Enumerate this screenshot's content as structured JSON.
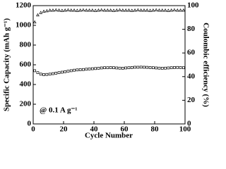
{
  "chart_data": {
    "type": "scatter",
    "x_label": "Cycle Number",
    "y_label": "Specific Capacity (mAh g⁻¹)",
    "y2_label": "Coulombic efficiency (%)",
    "annotation": "@ 0.1 A g⁻¹",
    "xlim": [
      0,
      100
    ],
    "xticks": [
      0,
      20,
      40,
      60,
      80,
      100
    ],
    "ylim": [
      0,
      1200
    ],
    "yticks": [
      0,
      200,
      400,
      600,
      800,
      1000,
      1200
    ],
    "y2lim": [
      0,
      100
    ],
    "y2ticks": [
      0,
      20,
      40,
      60,
      80,
      100
    ],
    "x": [
      1,
      3,
      5,
      7,
      9,
      11,
      13,
      15,
      17,
      19,
      21,
      23,
      25,
      27,
      29,
      31,
      33,
      35,
      37,
      39,
      41,
      43,
      45,
      47,
      49,
      51,
      53,
      55,
      57,
      59,
      61,
      63,
      65,
      67,
      69,
      71,
      73,
      75,
      77,
      79,
      81,
      83,
      85,
      87,
      89,
      91,
      93,
      95,
      97,
      99
    ],
    "series": [
      {
        "name": "Specific Capacity",
        "color": "#000000",
        "marker": "square",
        "values": [
          540,
          520,
          505,
          500,
          502,
          505,
          510,
          515,
          520,
          525,
          530,
          535,
          540,
          545,
          548,
          550,
          552,
          555,
          558,
          560,
          562,
          565,
          568,
          570,
          570,
          572,
          570,
          568,
          566,
          565,
          568,
          570,
          572,
          575,
          575,
          576,
          575,
          574,
          572,
          570,
          568,
          566,
          565,
          566,
          568,
          570,
          572,
          573,
          572,
          570
        ]
      },
      {
        "name": "Coulombic efficiency",
        "color": "#000000",
        "marker": "triangle",
        "axis": "y2",
        "values": [
          86,
          92,
          94,
          95,
          95.5,
          96,
          96,
          96.2,
          96,
          95.8,
          96,
          96.2,
          96,
          96,
          95.8,
          96,
          96.2,
          96,
          96,
          96,
          95.8,
          96,
          96.2,
          96,
          96,
          96,
          95.8,
          96,
          96.2,
          96,
          96,
          96,
          95.8,
          96,
          96.2,
          96,
          96,
          96,
          95.8,
          96,
          96.2,
          96,
          96,
          96,
          95.8,
          96,
          96.2,
          96,
          96,
          96
        ]
      }
    ]
  }
}
